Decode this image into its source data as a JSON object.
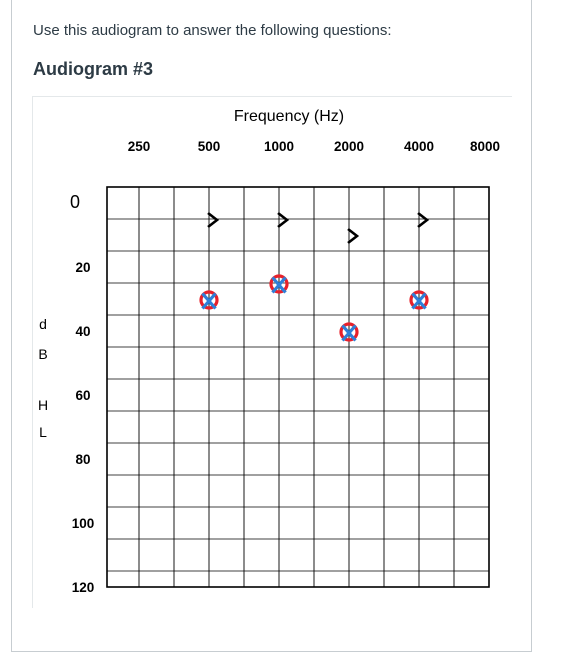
{
  "intro": "Use this audiogram to answer the following questions:",
  "title": "Audiogram #3",
  "chart_data": {
    "type": "scatter",
    "xlabel": "Frequency (Hz)",
    "ylabel": [
      "d",
      "B",
      "H",
      "L"
    ],
    "x_ticks": [
      "250",
      "500",
      "1000",
      "2000",
      "4000",
      "8000"
    ],
    "y_ticks": [
      "0",
      "20",
      "40",
      "60",
      "80",
      "100",
      "120"
    ],
    "ylim": [
      -5,
      120
    ],
    "y_inverted": true,
    "grid": true,
    "colors": {
      "grid": "#000000",
      "o_symbol": "#e8212b",
      "x_symbol": "#2f7fd8",
      "bone_symbol": "#000000"
    },
    "series": [
      {
        "symbol": "bone-conduction >",
        "points": [
          [
            500,
            5
          ],
          [
            1000,
            5
          ],
          [
            2000,
            10
          ],
          [
            4000,
            5
          ]
        ]
      },
      {
        "symbol": "O",
        "points": [
          [
            500,
            30
          ],
          [
            1000,
            25
          ],
          [
            2000,
            40
          ],
          [
            4000,
            30
          ]
        ]
      },
      {
        "symbol": "X",
        "points": [
          [
            500,
            30
          ],
          [
            1000,
            25
          ],
          [
            2000,
            40
          ],
          [
            4000,
            30
          ]
        ]
      }
    ]
  }
}
